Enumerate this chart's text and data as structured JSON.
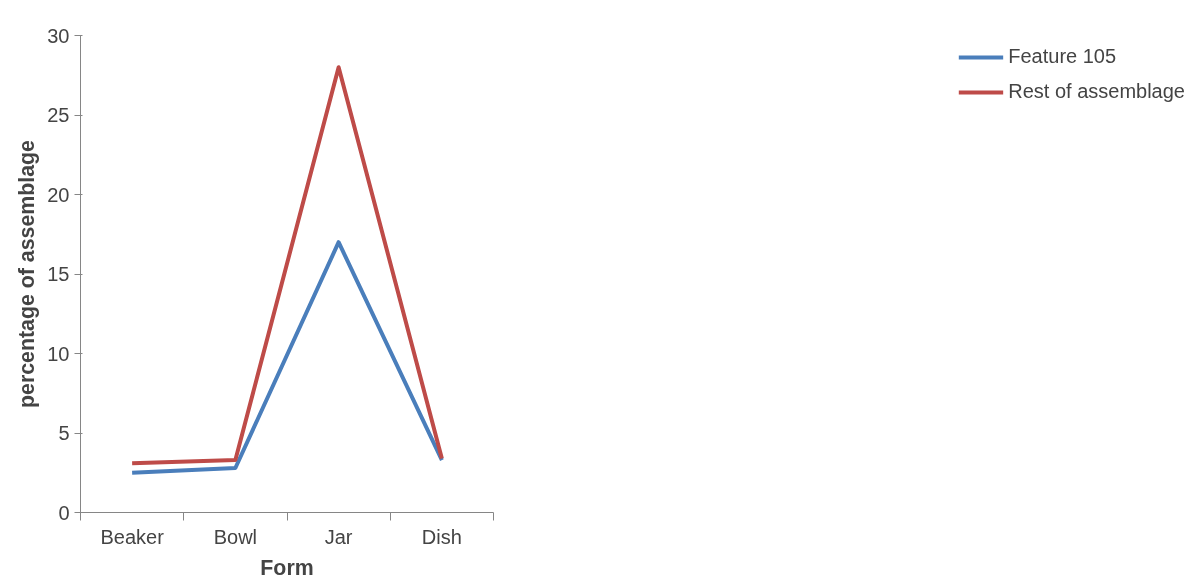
{
  "chart_data": {
    "type": "line",
    "xlabel": "Form",
    "ylabel": "percentage of assemblage",
    "categories": [
      "Beaker",
      "Bowl",
      "Jar",
      "Dish"
    ],
    "series": [
      {
        "name": "Feature 105",
        "color": "#4a7ebb",
        "values": [
          2.5,
          2.8,
          17,
          3.3
        ]
      },
      {
        "name": "Rest of assemblage",
        "color": "#be4b48",
        "values": [
          3.1,
          3.3,
          28,
          3.4
        ]
      }
    ],
    "ylim": [
      0,
      30
    ],
    "yticks": [
      0,
      5,
      10,
      15,
      20,
      25,
      30
    ],
    "grid": false,
    "legend": "right",
    "marker": "none",
    "line_style": "solid"
  }
}
